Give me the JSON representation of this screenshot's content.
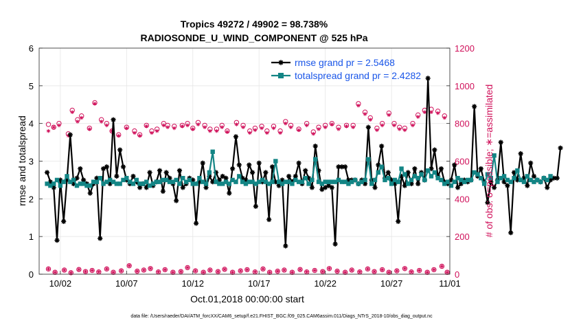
{
  "chart_data": {
    "type": "line",
    "title_line1": "Tropics 49272 / 49902 = 98.738%",
    "title_line2": "RADIOSONDE_U_WIND_COMPONENT @ 525 hPa",
    "xlabel": "Oct.01,2018 00:00:00 start",
    "ylabel_left": "rmse and totalspread",
    "ylabel_right": "# of obs: o=possible; ∗=assimilated",
    "footer": "data file: /Users/raeder/DAI/ATM_forcXX/CAM6_setup/f.e21.FHIST_BGC.f09_025.CAM6assim.011/Diags_NTrS_2018-10/obs_diag_output.nc",
    "colors": {
      "rmse": "#000000",
      "spread": "#138585",
      "obs": "#d0105a",
      "legend_text": "#1a56e8"
    },
    "xlim": [
      0.4,
      31.4
    ],
    "ylim_left": [
      0,
      6
    ],
    "ylim_right": [
      0,
      1200
    ],
    "yticks_left": [
      "0",
      "1",
      "2",
      "3",
      "4",
      "5",
      "6"
    ],
    "yticks_right": [
      "0",
      "200",
      "400",
      "600",
      "800",
      "1000",
      "1200"
    ],
    "xtick_labels": [
      "10/02",
      "10/07",
      "10/12",
      "10/17",
      "10/22",
      "10/27",
      "11/01"
    ],
    "xtick_values": [
      2,
      7,
      12,
      17,
      22,
      27,
      32
    ],
    "legend": [
      {
        "label": "rmse grand pr = 2.5468",
        "series": "rmse"
      },
      {
        "label": "totalspread grand pr = 2.4282",
        "series": "spread"
      }
    ],
    "x_start": 1,
    "x_step": 0.25,
    "series": [
      {
        "name": "rmse",
        "values": [
          2.7,
          2.45,
          2.3,
          0.9,
          2.5,
          1.4,
          2.5,
          3.7,
          2.4,
          2.55,
          2.8,
          2.5,
          2.4,
          2.15,
          2.4,
          2.55,
          0.95,
          2.8,
          2.85,
          2.4,
          4.1,
          2.6,
          3.3,
          2.85,
          2.5,
          2.4,
          2.6,
          2.45,
          2.3,
          2.4,
          2.3,
          2.7,
          2.35,
          2.45,
          2.75,
          2.2,
          2.7,
          2.55,
          2.4,
          1.95,
          2.75,
          2.3,
          2.4,
          2.55,
          2.5,
          1.35,
          2.45,
          2.95,
          2.3,
          2.6,
          2.45,
          2.7,
          2.5,
          2.6,
          2.55,
          2.15,
          2.8,
          3.65,
          2.9,
          2.55,
          2.5,
          2.9,
          2.7,
          1.8,
          2.95,
          2.45,
          2.7,
          1.45,
          2.85,
          2.45,
          2.35,
          2.5,
          0.75,
          2.6,
          2.45,
          2.6,
          2.95,
          2.4,
          2.75,
          2.55,
          2.3,
          3.4,
          2.75,
          2.25,
          2.3,
          2.35,
          2.3,
          0.8,
          2.85,
          2.85,
          2.85,
          2.5,
          2.5,
          2.5,
          2.4,
          2.5,
          2.4,
          3.9,
          2.5,
          2.3,
          2.9,
          3.4,
          2.55,
          2.7,
          2.5,
          2.4,
          1.4,
          2.6,
          2.35,
          2.7,
          2.4,
          2.8,
          2.4,
          2.7,
          2.5,
          5.2,
          2.8,
          3.3,
          2.6,
          2.8,
          2.45,
          2.4,
          2.5,
          2.9,
          2.3,
          2.4,
          2.5,
          2.45,
          2.5,
          4.45,
          2.6,
          2.8,
          2.45,
          1.9,
          2.45,
          2.3,
          2.5,
          3.5,
          2.45,
          2.35,
          1.1,
          2.7,
          2.5,
          3.2,
          2.55,
          2.35,
          2.95,
          2.6,
          2.5,
          2.45,
          2.55,
          2.3,
          2.5,
          2.55,
          2.55,
          3.35
        ]
      },
      {
        "name": "totalspread",
        "values": [
          2.4,
          2.35,
          2.4,
          2.5,
          2.35,
          2.45,
          2.6,
          2.45,
          2.5,
          2.35,
          2.4,
          2.4,
          2.35,
          2.35,
          2.45,
          2.45,
          2.55,
          2.4,
          2.45,
          2.5,
          2.45,
          2.4,
          2.4,
          2.5,
          2.55,
          2.45,
          2.4,
          2.5,
          2.4,
          2.4,
          2.45,
          2.35,
          2.4,
          2.45,
          2.45,
          2.5,
          2.5,
          2.45,
          2.45,
          2.5,
          2.4,
          2.55,
          2.45,
          2.5,
          2.4,
          2.4,
          2.55,
          2.45,
          2.4,
          2.7,
          3.25,
          2.45,
          2.4,
          2.4,
          2.45,
          2.4,
          2.5,
          2.45,
          2.6,
          2.45,
          2.4,
          2.45,
          2.45,
          2.4,
          2.45,
          2.5,
          2.45,
          2.4,
          2.45,
          3.0,
          2.45,
          2.4,
          2.45,
          2.45,
          2.4,
          2.5,
          2.45,
          2.45,
          2.55,
          2.4,
          2.5,
          3.05,
          2.45,
          2.4,
          2.45,
          2.45,
          2.45,
          2.45,
          2.5,
          2.45,
          2.45,
          2.4,
          2.45,
          2.5,
          2.4,
          2.45,
          2.5,
          3.05,
          2.4,
          2.5,
          2.7,
          2.85,
          2.5,
          2.55,
          2.4,
          2.5,
          2.45,
          2.8,
          2.65,
          2.4,
          2.5,
          2.6,
          2.55,
          2.65,
          2.5,
          2.75,
          2.6,
          2.7,
          2.55,
          2.5,
          2.4,
          2.45,
          2.35,
          2.45,
          2.55,
          2.5,
          2.45,
          2.5,
          2.5,
          2.7,
          2.65,
          2.55,
          2.4,
          2.65,
          2.55,
          3.15,
          2.45,
          2.55,
          2.6,
          2.5,
          2.45,
          2.55,
          2.75,
          2.5,
          2.45,
          2.6,
          2.5,
          2.45,
          2.5,
          2.45,
          2.55,
          2.5,
          2.6
        ]
      },
      {
        "name": "obs_possible",
        "x": [
          1.1,
          1.5,
          1.9,
          2.6,
          2.9,
          3.3,
          3.6,
          4.2,
          4.6,
          5.1,
          5.5,
          5.9,
          6.4,
          7.0,
          7.6,
          8.0,
          8.5,
          8.9,
          9.3,
          9.8,
          10.1,
          10.6,
          11.2,
          11.6,
          12.0,
          12.4,
          12.9,
          13.3,
          13.8,
          14.2,
          14.6,
          15.3,
          15.8,
          16.3,
          16.7,
          17.2,
          17.6,
          18.1,
          18.6,
          19.0,
          19.4,
          20.0,
          20.6,
          21.1,
          21.5,
          22.0,
          22.5,
          23.0,
          23.6,
          24.1,
          24.5,
          25.0,
          25.4,
          25.9,
          26.3,
          26.8,
          27.2,
          27.6,
          28.0,
          28.6,
          29.0,
          29.5,
          30.0,
          30.5,
          31.0
        ],
        "y": [
          795,
          780,
          800,
          745,
          870,
          820,
          840,
          775,
          910,
          820,
          800,
          760,
          740,
          780,
          760,
          740,
          790,
          760,
          770,
          800,
          790,
          785,
          790,
          800,
          775,
          805,
          790,
          770,
          770,
          790,
          760,
          805,
          790,
          760,
          775,
          785,
          760,
          785,
          760,
          810,
          790,
          770,
          800,
          755,
          780,
          790,
          800,
          780,
          790,
          790,
          905,
          860,
          830,
          775,
          800,
          855,
          800,
          780,
          775,
          800,
          845,
          870,
          875,
          865,
          840
        ]
      },
      {
        "name": "obs_assimilated",
        "x": [
          1.1,
          1.5,
          1.9,
          2.6,
          2.9,
          3.3,
          3.6,
          4.2,
          4.6,
          5.1,
          5.5,
          5.9,
          6.4,
          7.0,
          7.6,
          8.0,
          8.5,
          8.9,
          9.3,
          9.8,
          10.1,
          10.6,
          11.2,
          11.6,
          12.0,
          12.4,
          12.9,
          13.3,
          13.8,
          14.2,
          14.6,
          15.3,
          15.8,
          16.3,
          16.7,
          17.2,
          17.6,
          18.1,
          18.6,
          19.0,
          19.4,
          20.0,
          20.6,
          21.1,
          21.5,
          22.0,
          22.5,
          23.0,
          23.6,
          24.1,
          24.5,
          25.0,
          25.4,
          25.9,
          26.3,
          26.8,
          27.2,
          27.6,
          28.0,
          28.6,
          29.0,
          29.5,
          30.0,
          30.5,
          31.0
        ],
        "y": [
          760,
          780,
          790,
          735,
          860,
          810,
          830,
          770,
          905,
          810,
          790,
          760,
          735,
          775,
          750,
          735,
          785,
          750,
          760,
          790,
          780,
          775,
          785,
          790,
          770,
          795,
          780,
          760,
          760,
          780,
          755,
          795,
          780,
          750,
          765,
          775,
          750,
          775,
          750,
          800,
          780,
          765,
          790,
          745,
          770,
          780,
          795,
          770,
          785,
          780,
          895,
          850,
          820,
          765,
          790,
          845,
          790,
          770,
          765,
          790,
          835,
          860,
          860,
          855,
          830
        ]
      },
      {
        "name": "obs_low",
        "x": [
          1.1,
          1.6,
          2.3,
          2.8,
          3.4,
          3.9,
          4.4,
          4.9,
          5.5,
          6.0,
          6.6,
          7.2,
          7.8,
          8.3,
          8.8,
          9.4,
          9.9,
          10.5,
          11.1,
          11.6,
          12.2,
          12.8,
          13.3,
          13.9,
          14.4,
          15.0,
          15.6,
          16.1,
          16.7,
          17.3,
          17.8,
          18.4,
          18.9,
          19.5,
          20.1,
          20.6,
          21.2,
          21.8,
          22.3,
          22.9,
          23.5,
          24.0,
          24.6,
          25.2,
          25.7,
          26.3,
          26.8,
          27.4,
          28.0,
          28.5,
          29.1,
          29.7,
          30.2,
          30.8,
          31.2
        ],
        "y": [
          28,
          10,
          22,
          8,
          25,
          14,
          20,
          12,
          28,
          10,
          18,
          45,
          16,
          22,
          30,
          12,
          24,
          10,
          14,
          35,
          18,
          10,
          22,
          14,
          26,
          10,
          18,
          24,
          12,
          28,
          10,
          16,
          22,
          10,
          25,
          12,
          20,
          14,
          30,
          16,
          10,
          22,
          12,
          28,
          14,
          24,
          10,
          18,
          30,
          12,
          20,
          10,
          24,
          42,
          10
        ]
      }
    ]
  }
}
